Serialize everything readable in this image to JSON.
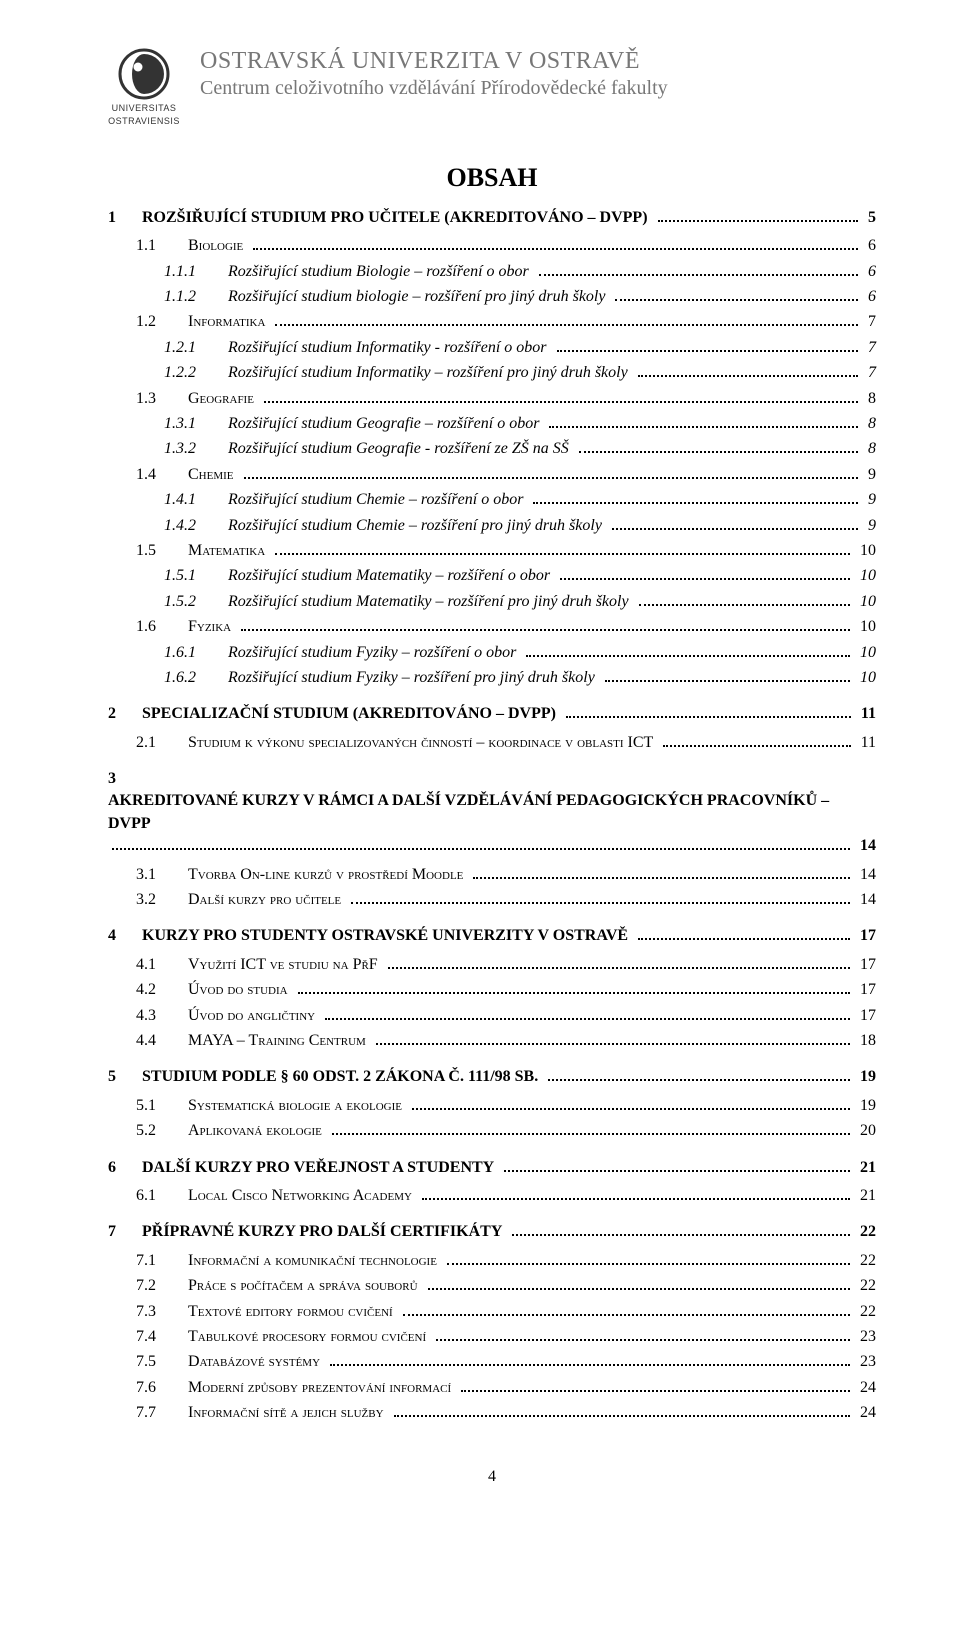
{
  "header": {
    "logo_caption_top": "UNIVERSITAS",
    "logo_caption_bottom": "OSTRAVIENSIS",
    "line1": "OSTRAVSKÁ UNIVERZITA V OSTRAVĚ",
    "line2": "Centrum celoživotního vzdělávání Přírodovědecké fakulty"
  },
  "title": "OBSAH",
  "page_number": "4",
  "toc": [
    {
      "lvl": 1,
      "n": "1",
      "t": "ROZŠIŘUJÍCÍ STUDIUM PRO UČITELE (AKREDITOVÁNO – DVPP)",
      "p": "5"
    },
    {
      "lvl": 2,
      "n": "1.1",
      "t": "Biologie",
      "p": "6"
    },
    {
      "lvl": 3,
      "n": "1.1.1",
      "t": "Rozšiřující studium Biologie – rozšíření o obor",
      "p": "6"
    },
    {
      "lvl": 3,
      "n": "1.1.2",
      "t": "Rozšiřující studium biologie – rozšíření pro jiný druh školy",
      "p": "6"
    },
    {
      "lvl": 2,
      "n": "1.2",
      "t": "Informatika",
      "p": "7"
    },
    {
      "lvl": 3,
      "n": "1.2.1",
      "t": "Rozšiřující studium Informatiky - rozšíření o obor",
      "p": "7"
    },
    {
      "lvl": 3,
      "n": "1.2.2",
      "t": "Rozšiřující studium Informatiky – rozšíření pro jiný druh školy",
      "p": "7"
    },
    {
      "lvl": 2,
      "n": "1.3",
      "t": "Geografie",
      "p": "8"
    },
    {
      "lvl": 3,
      "n": "1.3.1",
      "t": "Rozšiřující studium Geografie – rozšíření o obor",
      "p": "8"
    },
    {
      "lvl": 3,
      "n": "1.3.2",
      "t": "Rozšiřující studium Geografie - rozšíření ze ZŠ na SŠ",
      "p": "8"
    },
    {
      "lvl": 2,
      "n": "1.4",
      "t": "Chemie",
      "p": "9"
    },
    {
      "lvl": 3,
      "n": "1.4.1",
      "t": "Rozšiřující studium Chemie – rozšíření o obor",
      "p": "9"
    },
    {
      "lvl": 3,
      "n": "1.4.2",
      "t": "Rozšiřující studium Chemie – rozšíření pro jiný druh školy",
      "p": "9"
    },
    {
      "lvl": 2,
      "n": "1.5",
      "t": "Matematika",
      "p": "10"
    },
    {
      "lvl": 3,
      "n": "1.5.1",
      "t": "Rozšiřující studium Matematiky – rozšíření o obor",
      "p": "10"
    },
    {
      "lvl": 3,
      "n": "1.5.2",
      "t": "Rozšiřující studium Matematiky – rozšíření pro jiný druh školy",
      "p": "10"
    },
    {
      "lvl": 2,
      "n": "1.6",
      "t": "Fyzika",
      "p": "10"
    },
    {
      "lvl": 3,
      "n": "1.6.1",
      "t": "Rozšiřující studium Fyziky – rozšíření o obor",
      "p": "10"
    },
    {
      "lvl": 3,
      "n": "1.6.2",
      "t": "Rozšiřující studium Fyziky – rozšíření pro jiný druh školy",
      "p": "10"
    },
    {
      "lvl": 1,
      "n": "2",
      "t": "SPECIALIZAČNÍ STUDIUM (AKREDITOVÁNO – DVPP)",
      "p": "11"
    },
    {
      "lvl": 2,
      "n": "2.1",
      "t": "Studium k výkonu specializovaných činností – koordinace v oblasti ICT",
      "p": "11"
    },
    {
      "lvl": 1,
      "n": "3",
      "t": "AKREDITOVANÉ KURZY V RÁMCI A DALŠÍ VZDĚLÁVÁNÍ PEDAGOGICKÝCH PRACOVNÍKŮ – DVPP",
      "p": "14",
      "wrap": true
    },
    {
      "lvl": 2,
      "n": "3.1",
      "t": "Tvorba On-line kurzů v prostředí Moodle",
      "p": "14"
    },
    {
      "lvl": 2,
      "n": "3.2",
      "t": "Další kurzy pro učitele",
      "p": "14"
    },
    {
      "lvl": 1,
      "n": "4",
      "t": "KURZY PRO STUDENTY OSTRAVSKÉ UNIVERZITY V OSTRAVĚ",
      "p": "17"
    },
    {
      "lvl": 2,
      "n": "4.1",
      "t": "Využití ICT ve studiu na PřF",
      "p": "17"
    },
    {
      "lvl": 2,
      "n": "4.2",
      "t": "Úvod do studia",
      "p": "17"
    },
    {
      "lvl": 2,
      "n": "4.3",
      "t": "Úvod do angličtiny",
      "p": "17"
    },
    {
      "lvl": 2,
      "n": "4.4",
      "t": "MAYA – Training Centrum",
      "p": "18"
    },
    {
      "lvl": 1,
      "n": "5",
      "t": "STUDIUM PODLE § 60 ODST. 2 ZÁKONA Č. 111/98 SB.",
      "p": "19"
    },
    {
      "lvl": 2,
      "n": "5.1",
      "t": "Systematická biologie a ekologie",
      "p": "19"
    },
    {
      "lvl": 2,
      "n": "5.2",
      "t": "Aplikovaná ekologie",
      "p": "20"
    },
    {
      "lvl": 1,
      "n": "6",
      "t": "DALŠÍ KURZY PRO VEŘEJNOST A STUDENTY",
      "p": "21"
    },
    {
      "lvl": 2,
      "n": "6.1",
      "t": "Local Cisco Networking Academy",
      "p": "21"
    },
    {
      "lvl": 1,
      "n": "7",
      "t": "PŘÍPRAVNÉ KURZY PRO DALŠÍ CERTIFIKÁTY",
      "p": "22"
    },
    {
      "lvl": 2,
      "n": "7.1",
      "t": "Informační a komunikační technologie",
      "p": "22"
    },
    {
      "lvl": 2,
      "n": "7.2",
      "t": "Práce s počítačem a správa souborů",
      "p": "22"
    },
    {
      "lvl": 2,
      "n": "7.3",
      "t": "Textové editory formou cvičení",
      "p": "22"
    },
    {
      "lvl": 2,
      "n": "7.4",
      "t": "Tabulkové procesory formou cvičení",
      "p": "23"
    },
    {
      "lvl": 2,
      "n": "7.5",
      "t": "Databázové systémy",
      "p": "23"
    },
    {
      "lvl": 2,
      "n": "7.6",
      "t": "Moderní způsoby prezentování informací",
      "p": "24"
    },
    {
      "lvl": 2,
      "n": "7.7",
      "t": "Informační sítě a jejich služby",
      "p": "24"
    }
  ]
}
